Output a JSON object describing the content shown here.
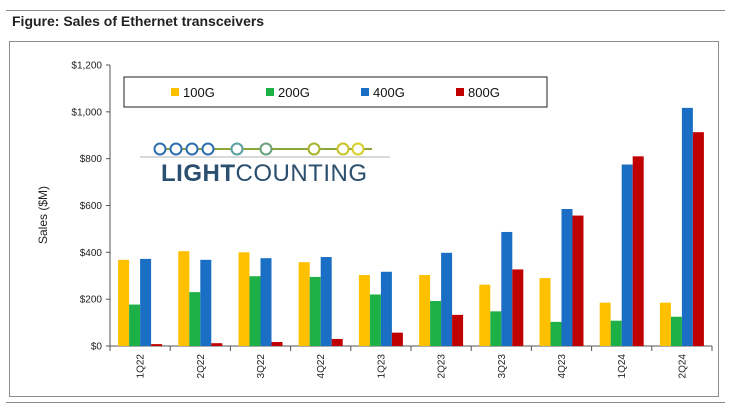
{
  "figure": {
    "title": "Figure: Sales of Ethernet transceivers"
  },
  "logo": {
    "bold_part": "LIGHT",
    "light_part": "COUNTING"
  },
  "colors": {
    "100G": "#ffc000",
    "200G": "#1db046",
    "400G": "#1a6fc4",
    "800G": "#c00000"
  },
  "chart_data": {
    "type": "bar",
    "ylabel": "Sales ($M)",
    "xlabel": "",
    "ylim": [
      0,
      1200
    ],
    "yticks": [
      0,
      200,
      400,
      600,
      800,
      1000,
      1200
    ],
    "ytick_labels": [
      "$0",
      "$200",
      "$400",
      "$600",
      "$800",
      "$1,000",
      "$1,200"
    ],
    "grid": false,
    "legend_position": "top",
    "categories": [
      "1Q22",
      "2Q22",
      "3Q22",
      "4Q22",
      "1Q23",
      "2Q23",
      "3Q23",
      "4Q23",
      "1Q24",
      "2Q24"
    ],
    "series": [
      {
        "name": "100G",
        "values": [
          368,
          405,
          400,
          358,
          303,
          303,
          262,
          290,
          185,
          185
        ]
      },
      {
        "name": "200G",
        "values": [
          177,
          230,
          298,
          295,
          220,
          192,
          148,
          103,
          108,
          125
        ]
      },
      {
        "name": "400G",
        "values": [
          372,
          368,
          375,
          380,
          317,
          398,
          487,
          585,
          775,
          1017
        ]
      },
      {
        "name": "800G",
        "values": [
          8,
          12,
          17,
          30,
          57,
          133,
          327,
          557,
          810,
          913
        ]
      }
    ]
  }
}
